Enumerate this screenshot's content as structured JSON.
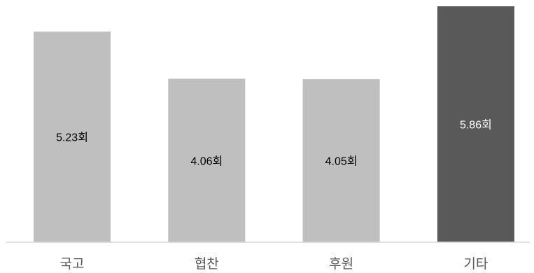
{
  "chart_data": {
    "type": "bar",
    "categories": [
      "국고",
      "협찬",
      "후원",
      "기타"
    ],
    "values": [
      5.23,
      4.06,
      4.05,
      5.86
    ],
    "data_labels": [
      "5.23회",
      "4.06회",
      "4.05회",
      "5.86회"
    ],
    "unit": "회",
    "title": "",
    "xlabel": "",
    "ylabel": "",
    "ylim": [
      0,
      6
    ],
    "grid": false,
    "legend": "none",
    "colors": {
      "bar": "#bfbfbf",
      "highlight_bar": "#595959",
      "label_dark": "#000000",
      "label_light": "#ffffff",
      "axis": "#d9d9d9",
      "category_text": "#595959"
    },
    "highlight_index": 3
  }
}
